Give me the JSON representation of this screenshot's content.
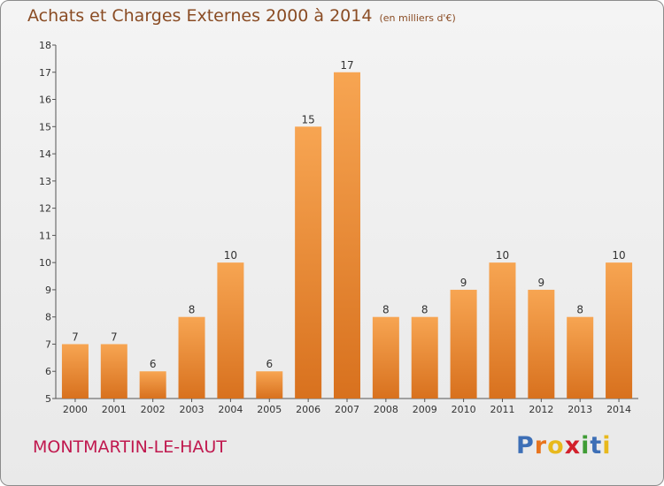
{
  "chart_data": {
    "type": "bar",
    "title": "Achats et Charges Externes 2000 à 2014",
    "subtitle": "(en milliers d'€)",
    "categories": [
      "2000",
      "2001",
      "2002",
      "2003",
      "2004",
      "2005",
      "2006",
      "2007",
      "2008",
      "2009",
      "2010",
      "2011",
      "2012",
      "2013",
      "2014"
    ],
    "values": [
      7,
      7,
      6,
      8,
      10,
      6,
      15,
      17,
      8,
      8,
      9,
      10,
      9,
      8,
      10
    ],
    "ylim": [
      5,
      18
    ],
    "yticks": [
      5,
      6,
      7,
      8,
      9,
      10,
      11,
      12,
      13,
      14,
      15,
      16,
      17,
      18
    ],
    "xlabel": "",
    "ylabel": "",
    "grid": false,
    "bar_color_top": "#f7a552",
    "bar_color_bottom": "#d8711e"
  },
  "footer": {
    "commune": "MONTMARTIN-LE-HAUT",
    "brand_letters": [
      "P",
      "r",
      "o",
      "x",
      "i",
      "t",
      "i"
    ],
    "brand_colors": [
      "#3d6fb6",
      "#e8741d",
      "#e8b91d",
      "#d2202b",
      "#3f9c35",
      "#3d6fb6",
      "#e8b91d"
    ]
  }
}
